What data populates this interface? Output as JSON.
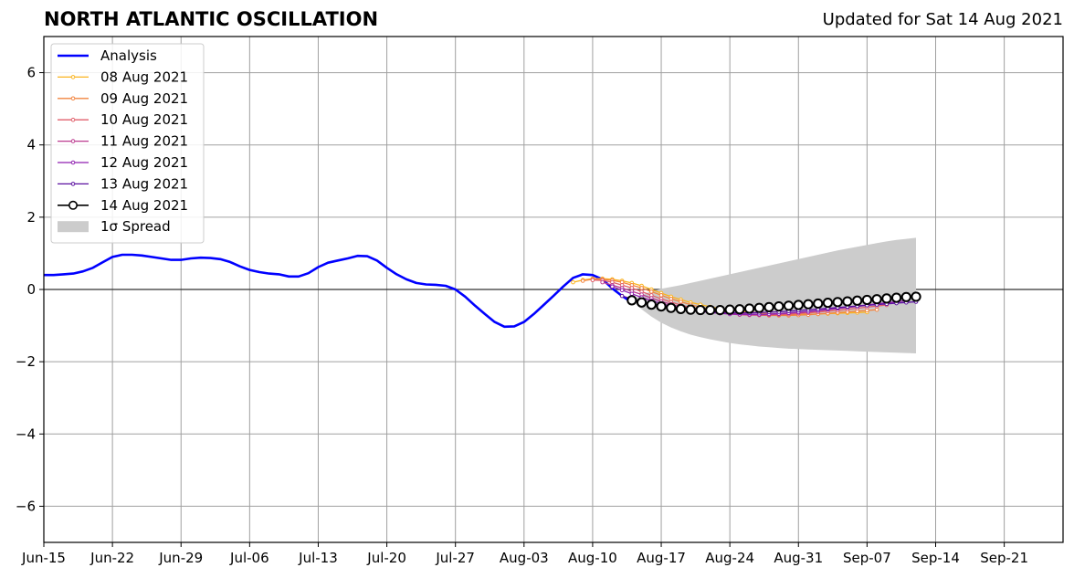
{
  "header": {
    "title": "NORTH ATLANTIC OSCILLATION",
    "updated": "Updated for Sat 14 Aug 2021"
  },
  "chart_data": {
    "type": "line",
    "title": "NORTH ATLANTIC OSCILLATION",
    "subtitle": "Updated for Sat 14 Aug 2021",
    "x_type": "date",
    "xlim": [
      "2021-06-15",
      "2021-09-27"
    ],
    "ylim": [
      -7,
      7
    ],
    "grid": true,
    "legend_position": "top-left",
    "x_ticks": [
      {
        "date": "2021-06-15",
        "label": "Jun-15"
      },
      {
        "date": "2021-06-22",
        "label": "Jun-22"
      },
      {
        "date": "2021-06-29",
        "label": "Jun-29"
      },
      {
        "date": "2021-07-06",
        "label": "Jul-06"
      },
      {
        "date": "2021-07-13",
        "label": "Jul-13"
      },
      {
        "date": "2021-07-20",
        "label": "Jul-20"
      },
      {
        "date": "2021-07-27",
        "label": "Jul-27"
      },
      {
        "date": "2021-08-03",
        "label": "Aug-03"
      },
      {
        "date": "2021-08-10",
        "label": "Aug-10"
      },
      {
        "date": "2021-08-17",
        "label": "Aug-17"
      },
      {
        "date": "2021-08-24",
        "label": "Aug-24"
      },
      {
        "date": "2021-08-31",
        "label": "Aug-31"
      },
      {
        "date": "2021-09-07",
        "label": "Sep-07"
      },
      {
        "date": "2021-09-14",
        "label": "Sep-14"
      },
      {
        "date": "2021-09-21",
        "label": "Sep-21"
      }
    ],
    "y_ticks": [
      {
        "value": 6,
        "label": "6"
      },
      {
        "value": 4,
        "label": "4"
      },
      {
        "value": 2,
        "label": "2"
      },
      {
        "value": 0,
        "label": "0"
      },
      {
        "value": -2,
        "label": "−2"
      },
      {
        "value": -4,
        "label": "−4"
      },
      {
        "value": -6,
        "label": "−6"
      }
    ],
    "analysis": {
      "name": "Analysis",
      "color": "#0000ff",
      "start_date": "2021-06-15",
      "values": [
        0.4,
        0.4,
        0.42,
        0.44,
        0.5,
        0.6,
        0.75,
        0.9,
        0.96,
        0.96,
        0.94,
        0.9,
        0.86,
        0.82,
        0.82,
        0.86,
        0.88,
        0.87,
        0.84,
        0.76,
        0.64,
        0.54,
        0.48,
        0.44,
        0.42,
        0.36,
        0.36,
        0.45,
        0.62,
        0.74,
        0.8,
        0.86,
        0.93,
        0.92,
        0.8,
        0.6,
        0.42,
        0.28,
        0.18,
        0.14,
        0.13,
        0.1,
        0.0,
        -0.2,
        -0.45,
        -0.68,
        -0.9,
        -1.03,
        -1.02,
        -0.9,
        -0.68,
        -0.43,
        -0.18,
        0.08,
        0.32,
        0.42,
        0.4,
        0.28,
        0.03,
        -0.18,
        -0.36
      ]
    },
    "spread": {
      "name": "1σ Spread",
      "color": "#cccccc",
      "start_date": "2021-08-14",
      "upper": [
        -0.3,
        -0.15,
        -0.05,
        0.02,
        0.07,
        0.12,
        0.18,
        0.24,
        0.3,
        0.36,
        0.42,
        0.48,
        0.54,
        0.6,
        0.66,
        0.72,
        0.78,
        0.84,
        0.9,
        0.96,
        1.02,
        1.08,
        1.13,
        1.18,
        1.23,
        1.28,
        1.33,
        1.37,
        1.4,
        1.43
      ],
      "lower": [
        -0.3,
        -0.55,
        -0.75,
        -0.92,
        -1.05,
        -1.16,
        -1.25,
        -1.32,
        -1.38,
        -1.43,
        -1.48,
        -1.52,
        -1.55,
        -1.58,
        -1.6,
        -1.62,
        -1.64,
        -1.65,
        -1.66,
        -1.67,
        -1.68,
        -1.69,
        -1.7,
        -1.71,
        -1.72,
        -1.73,
        -1.74,
        -1.75,
        -1.76,
        -1.77
      ]
    },
    "series": [
      {
        "name": "08 Aug 2021",
        "color": "#fbb41f",
        "start_date": "2021-08-08",
        "values": [
          0.2,
          0.26,
          0.3,
          0.3,
          0.28,
          0.24,
          0.18,
          0.1,
          0.0,
          -0.1,
          -0.2,
          -0.28,
          -0.36,
          -0.42,
          -0.48,
          -0.53,
          -0.57,
          -0.6,
          -0.63,
          -0.65,
          -0.67,
          -0.68,
          -0.69,
          -0.69,
          -0.69,
          -0.68,
          -0.67,
          -0.66,
          -0.65,
          -0.64,
          -0.63
        ]
      },
      {
        "name": "09 Aug 2021",
        "color": "#f2843f",
        "start_date": "2021-08-09",
        "values": [
          0.24,
          0.28,
          0.28,
          0.25,
          0.2,
          0.12,
          0.04,
          -0.06,
          -0.16,
          -0.26,
          -0.34,
          -0.42,
          -0.49,
          -0.55,
          -0.6,
          -0.64,
          -0.67,
          -0.7,
          -0.71,
          -0.72,
          -0.72,
          -0.72,
          -0.71,
          -0.7,
          -0.68,
          -0.66,
          -0.64,
          -0.62,
          -0.6,
          -0.58,
          -0.56
        ]
      },
      {
        "name": "10 Aug 2021",
        "color": "#e05f6b",
        "start_date": "2021-08-10",
        "values": [
          0.26,
          0.25,
          0.2,
          0.12,
          0.04,
          -0.06,
          -0.16,
          -0.26,
          -0.35,
          -0.43,
          -0.5,
          -0.56,
          -0.61,
          -0.65,
          -0.68,
          -0.7,
          -0.71,
          -0.71,
          -0.71,
          -0.7,
          -0.69,
          -0.67,
          -0.65,
          -0.63,
          -0.6,
          -0.58,
          -0.55,
          -0.52,
          -0.49,
          -0.46,
          -0.43
        ]
      },
      {
        "name": "11 Aug 2021",
        "color": "#bc3a8f",
        "start_date": "2021-08-11",
        "values": [
          0.2,
          0.12,
          0.04,
          -0.05,
          -0.14,
          -0.24,
          -0.33,
          -0.41,
          -0.48,
          -0.54,
          -0.59,
          -0.63,
          -0.66,
          -0.68,
          -0.69,
          -0.7,
          -0.7,
          -0.69,
          -0.68,
          -0.66,
          -0.64,
          -0.62,
          -0.59,
          -0.56,
          -0.53,
          -0.5,
          -0.47,
          -0.44,
          -0.41,
          -0.38,
          -0.35
        ]
      },
      {
        "name": "12 Aug 2021",
        "color": "#8f1fb0",
        "start_date": "2021-08-12",
        "values": [
          0.08,
          -0.02,
          -0.12,
          -0.22,
          -0.31,
          -0.39,
          -0.46,
          -0.52,
          -0.57,
          -0.61,
          -0.64,
          -0.66,
          -0.68,
          -0.69,
          -0.69,
          -0.69,
          -0.68,
          -0.67,
          -0.65,
          -0.63,
          -0.61,
          -0.58,
          -0.55,
          -0.52,
          -0.49,
          -0.46,
          -0.43,
          -0.4,
          -0.37,
          -0.34,
          -0.31
        ]
      },
      {
        "name": "13 Aug 2021",
        "color": "#5a10a0",
        "start_date": "2021-08-13",
        "values": [
          -0.18,
          -0.26,
          -0.33,
          -0.4,
          -0.46,
          -0.51,
          -0.55,
          -0.58,
          -0.61,
          -0.63,
          -0.64,
          -0.65,
          -0.65,
          -0.65,
          -0.64,
          -0.63,
          -0.62,
          -0.6,
          -0.58,
          -0.56,
          -0.54,
          -0.52,
          -0.5,
          -0.48,
          -0.46,
          -0.44,
          -0.42,
          -0.4,
          -0.38,
          -0.36,
          -0.34
        ]
      },
      {
        "name": "14 Aug 2021",
        "color": "#000000",
        "start_date": "2021-08-14",
        "marker": "open-circle",
        "values": [
          -0.3,
          -0.36,
          -0.42,
          -0.47,
          -0.51,
          -0.54,
          -0.56,
          -0.57,
          -0.57,
          -0.57,
          -0.56,
          -0.55,
          -0.53,
          -0.51,
          -0.49,
          -0.47,
          -0.45,
          -0.43,
          -0.41,
          -0.39,
          -0.37,
          -0.35,
          -0.33,
          -0.31,
          -0.29,
          -0.27,
          -0.25,
          -0.23,
          -0.21,
          -0.2
        ]
      }
    ],
    "legend": [
      {
        "label": "Analysis",
        "color": "#0000ff",
        "kind": "thick-line"
      },
      {
        "label": "08 Aug 2021",
        "color": "#fbb41f",
        "kind": "dot-line"
      },
      {
        "label": "09 Aug 2021",
        "color": "#f2843f",
        "kind": "dot-line"
      },
      {
        "label": "10 Aug 2021",
        "color": "#e05f6b",
        "kind": "dot-line"
      },
      {
        "label": "11 Aug 2021",
        "color": "#bc3a8f",
        "kind": "dot-line"
      },
      {
        "label": "12 Aug 2021",
        "color": "#8f1fb0",
        "kind": "dot-line"
      },
      {
        "label": "13 Aug 2021",
        "color": "#5a10a0",
        "kind": "dot-line"
      },
      {
        "label": "14 Aug 2021",
        "color": "#000000",
        "kind": "circle-line"
      },
      {
        "label": "1σ Spread",
        "color": "#cccccc",
        "kind": "patch"
      }
    ]
  }
}
